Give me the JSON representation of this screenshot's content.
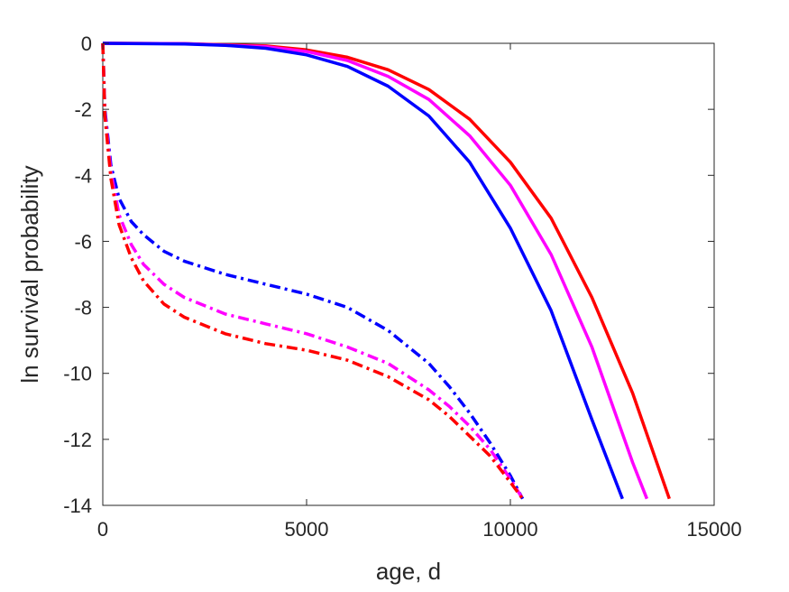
{
  "chart_data": {
    "type": "line",
    "title": "",
    "xlabel": "age, d",
    "ylabel": "ln survival probability",
    "xlim": [
      0,
      15000
    ],
    "ylim": [
      -14,
      0
    ],
    "xticks": [
      0,
      5000,
      10000,
      15000
    ],
    "yticks": [
      -14,
      -12,
      -10,
      -8,
      -6,
      -4,
      -2,
      0
    ],
    "grid": false,
    "legend": "none",
    "series": [
      {
        "color": "#ff0000",
        "style": "solid",
        "x": [
          0,
          2000,
          4000,
          5000,
          6000,
          7000,
          8000,
          9000,
          10000,
          11000,
          12000,
          13000,
          13900
        ],
        "y": [
          0,
          -0.01,
          -0.08,
          -0.2,
          -0.42,
          -0.8,
          -1.4,
          -2.3,
          -3.6,
          -5.3,
          -7.7,
          -10.6,
          -13.8
        ]
      },
      {
        "color": "#ff00ff",
        "style": "solid",
        "x": [
          0,
          2000,
          4000,
          5000,
          6000,
          7000,
          8000,
          9000,
          10000,
          11000,
          12000,
          13000,
          13350
        ],
        "y": [
          0,
          -0.01,
          -0.1,
          -0.25,
          -0.52,
          -1.0,
          -1.7,
          -2.8,
          -4.3,
          -6.4,
          -9.2,
          -12.7,
          -13.8
        ]
      },
      {
        "color": "#0000ff",
        "style": "solid",
        "x": [
          0,
          2000,
          3000,
          4000,
          5000,
          6000,
          7000,
          8000,
          9000,
          10000,
          11000,
          12000,
          12750
        ],
        "y": [
          0,
          -0.02,
          -0.06,
          -0.15,
          -0.35,
          -0.7,
          -1.3,
          -2.2,
          -3.6,
          -5.6,
          -8.1,
          -11.4,
          -13.8
        ]
      },
      {
        "color": "#0000ff",
        "style": "dashdot",
        "x": [
          0,
          50,
          200,
          400,
          700,
          1000,
          1500,
          2000,
          3000,
          4000,
          5000,
          6000,
          7000,
          8000,
          8500,
          9000,
          9500,
          10000,
          10300
        ],
        "y": [
          0,
          -2.0,
          -3.7,
          -4.7,
          -5.4,
          -5.8,
          -6.3,
          -6.6,
          -7.0,
          -7.3,
          -7.6,
          -8.0,
          -8.7,
          -9.7,
          -10.4,
          -11.2,
          -12.1,
          -13.1,
          -13.8
        ]
      },
      {
        "color": "#ff00ff",
        "style": "dashdot",
        "x": [
          0,
          50,
          200,
          400,
          700,
          1000,
          1500,
          2000,
          3000,
          4000,
          5000,
          6000,
          7000,
          8000,
          8500,
          9000,
          9500,
          10000,
          10300
        ],
        "y": [
          0,
          -2.1,
          -3.9,
          -5.2,
          -6.1,
          -6.7,
          -7.3,
          -7.7,
          -8.2,
          -8.5,
          -8.8,
          -9.2,
          -9.7,
          -10.5,
          -11.0,
          -11.6,
          -12.3,
          -13.2,
          -13.8
        ]
      },
      {
        "color": "#ff0000",
        "style": "dashdot",
        "x": [
          0,
          50,
          200,
          400,
          700,
          1000,
          1500,
          2000,
          3000,
          4000,
          5000,
          6000,
          7000,
          8000,
          8500,
          9000,
          9500,
          10000,
          10300
        ],
        "y": [
          0,
          -2.2,
          -4.1,
          -5.5,
          -6.5,
          -7.2,
          -7.9,
          -8.3,
          -8.8,
          -9.1,
          -9.3,
          -9.6,
          -10.1,
          -10.8,
          -11.3,
          -11.9,
          -12.5,
          -13.3,
          -13.8
        ]
      }
    ]
  }
}
